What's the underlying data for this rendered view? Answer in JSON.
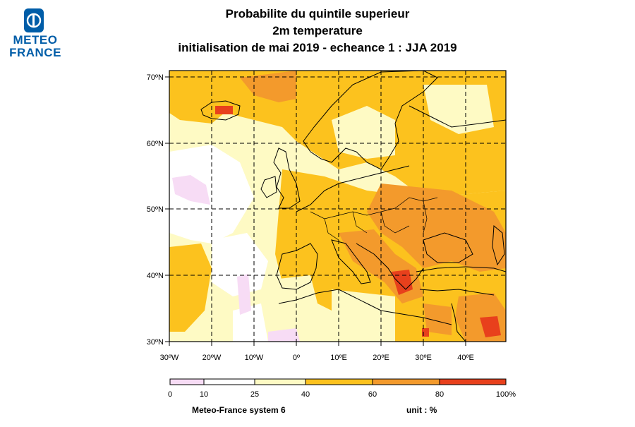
{
  "logo": {
    "line1": "METEO",
    "line2": "FRANCE"
  },
  "title": {
    "line1": "Probabilite du quintile superieur",
    "line2": "2m temperature",
    "line3": "initialisation de mai 2019  -  echeance 1 : JJA 2019"
  },
  "map": {
    "lat_labels": [
      "70ºN",
      "60ºN",
      "50ºN",
      "40ºN",
      "30ºN"
    ],
    "lon_labels": [
      "30ºW",
      "20ºW",
      "10ºW",
      "0º",
      "10ºE",
      "20ºE",
      "30ºE",
      "40ºE"
    ],
    "extent": {
      "lon_min": -30,
      "lon_max": 50,
      "lat_min": 30,
      "lat_max": 71
    }
  },
  "colorbar": {
    "ticks": [
      "0",
      "10",
      "25",
      "40",
      "60",
      "80",
      "100%"
    ],
    "classes": [
      {
        "from": 0,
        "to": 10,
        "color": "#f7dcf5"
      },
      {
        "from": 10,
        "to": 25,
        "color": "#ffffff"
      },
      {
        "from": 25,
        "to": 40,
        "color": "#fefac4"
      },
      {
        "from": 40,
        "to": 60,
        "color": "#fcc21e"
      },
      {
        "from": 60,
        "to": 80,
        "color": "#f39a2c"
      },
      {
        "from": 80,
        "to": 100,
        "color": "#e8401c"
      }
    ]
  },
  "footer": {
    "system": "Meteo-France system 6",
    "unit": "unit : %"
  }
}
